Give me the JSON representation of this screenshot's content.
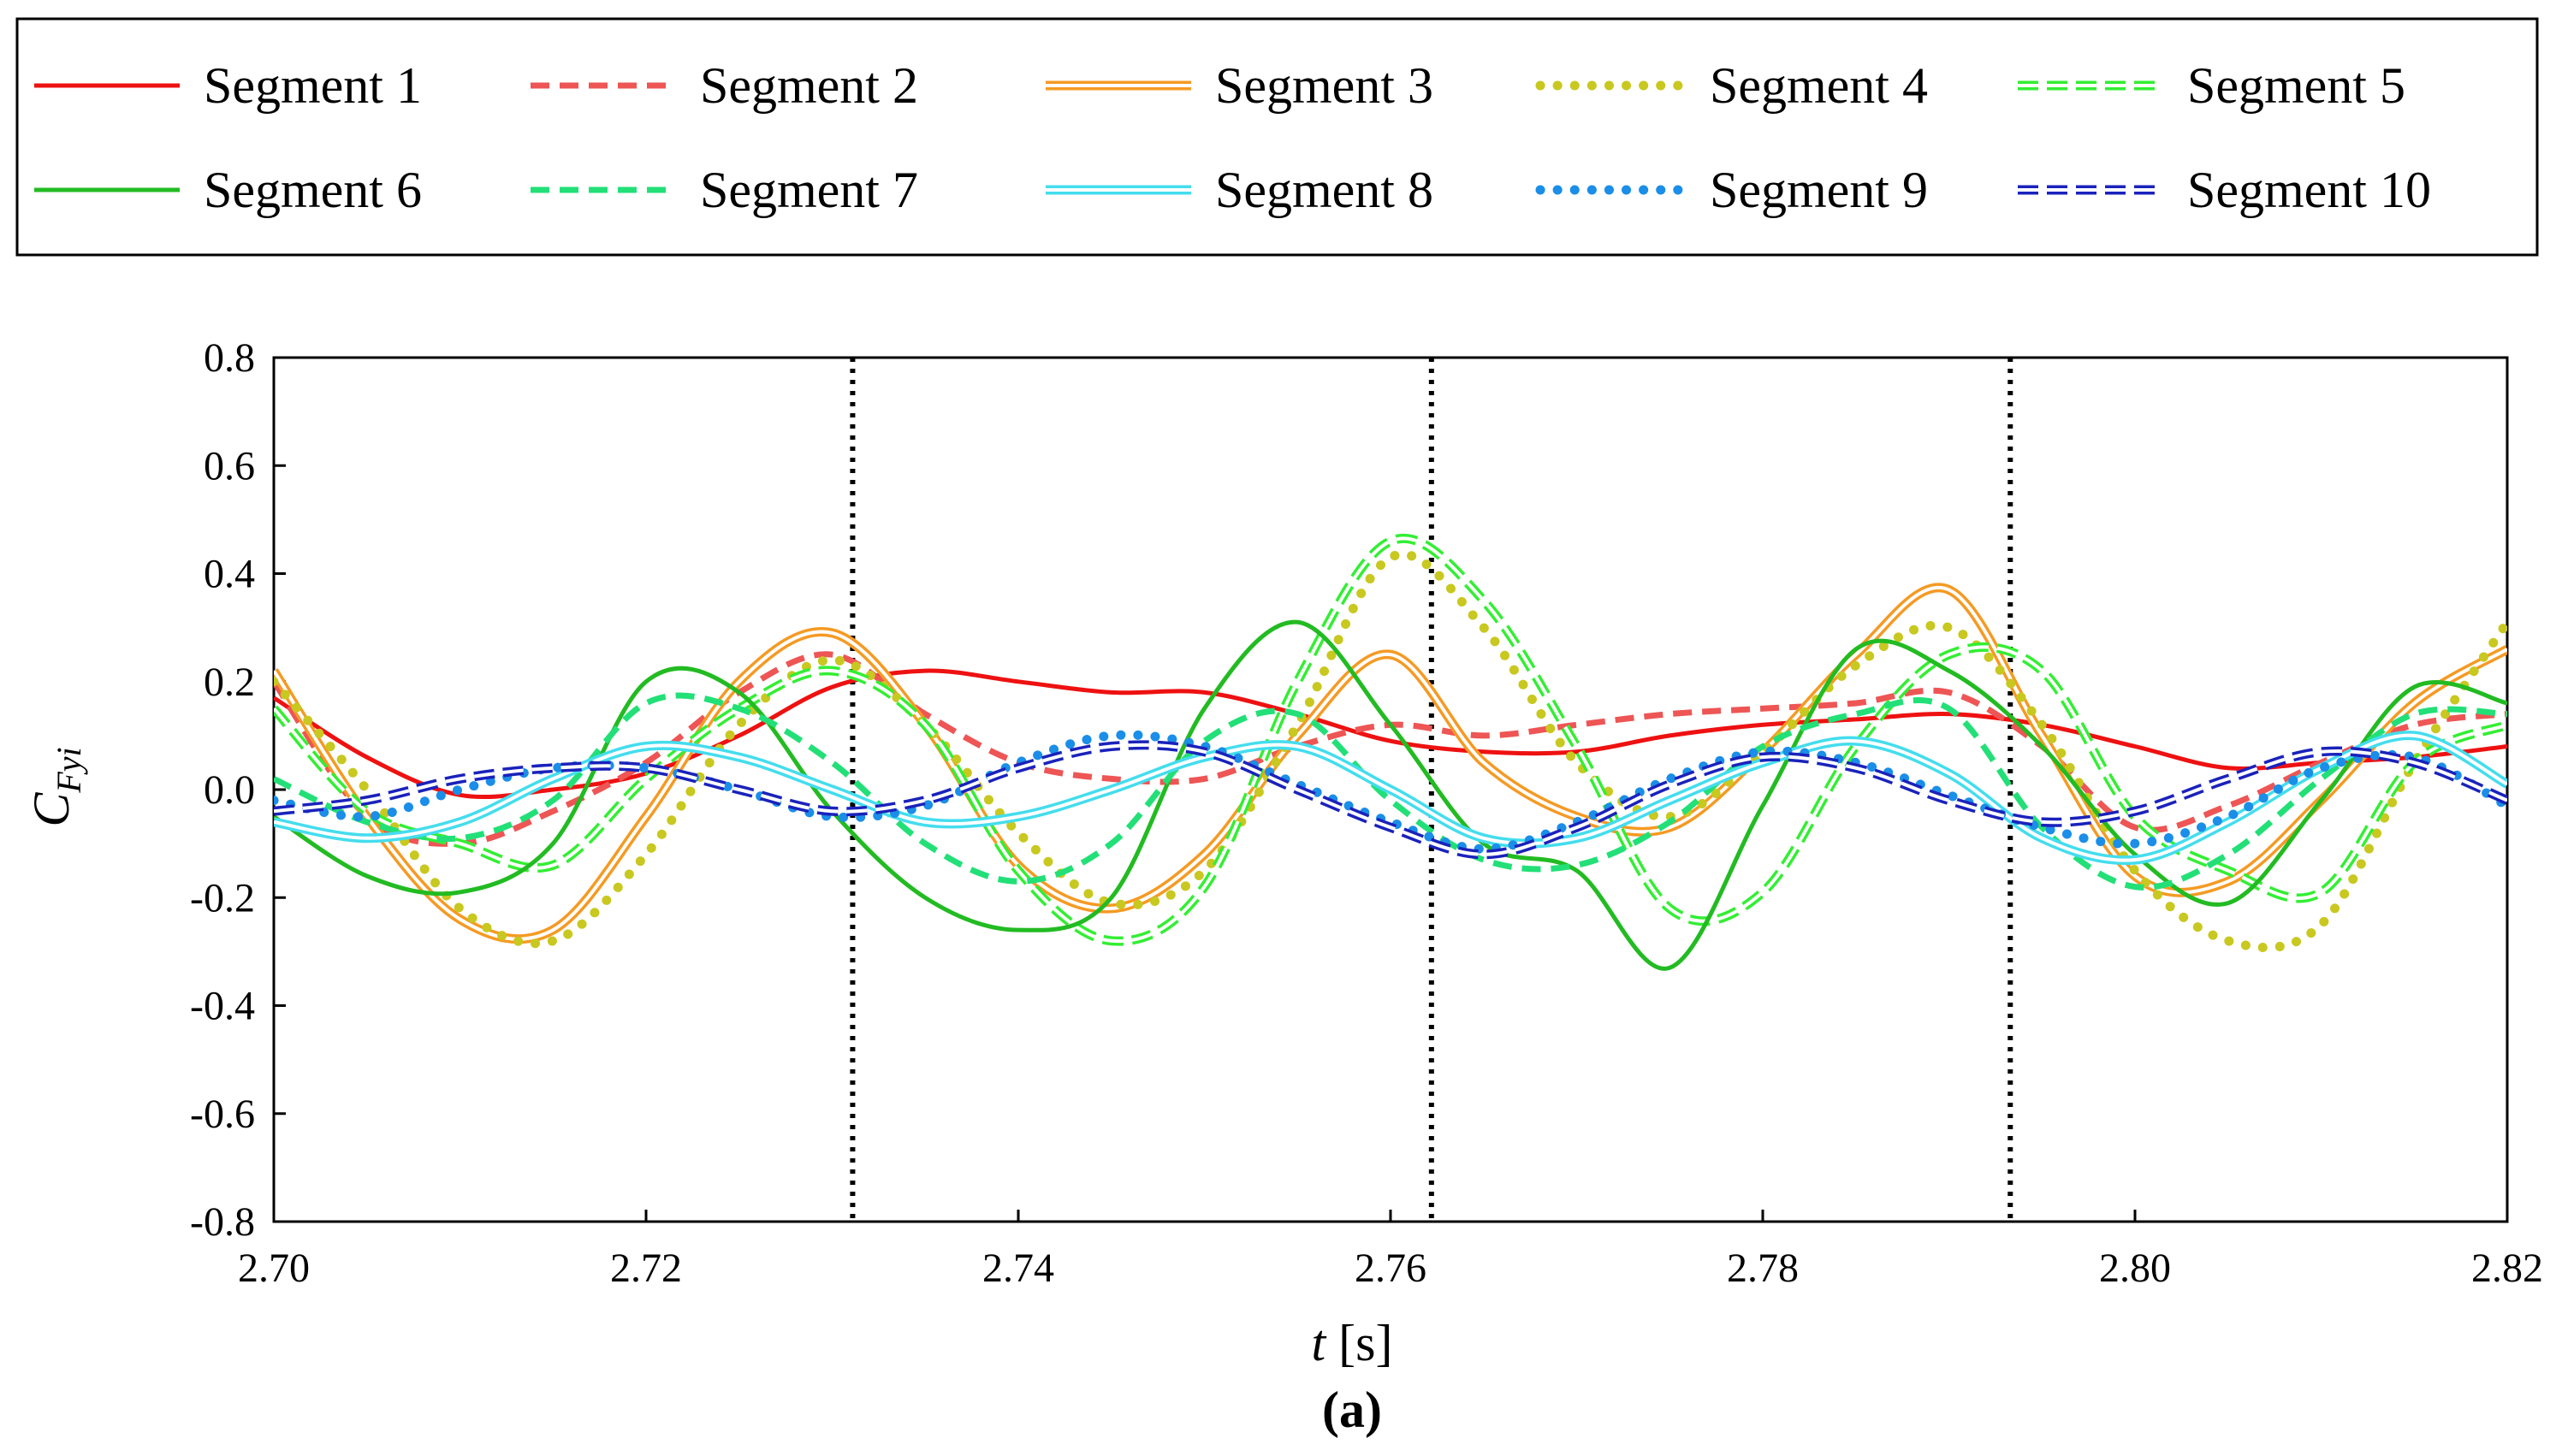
{
  "chart_data": {
    "type": "line",
    "title": "",
    "caption": "(a)",
    "xlabel_italic": "t",
    "xlabel_unit": " [s]",
    "ylabel_main": "C",
    "ylabel_sub": "Fyi",
    "xlim": [
      2.7,
      2.82
    ],
    "ylim": [
      -0.8,
      0.8
    ],
    "grid": false,
    "legend_position": "top",
    "x_ticks": [
      2.7,
      2.72,
      2.74,
      2.76,
      2.78,
      2.8,
      2.82
    ],
    "x_tick_labels": [
      "2.70",
      "2.72",
      "2.74",
      "2.76",
      "2.78",
      "2.80",
      "2.82"
    ],
    "y_ticks": [
      0.8,
      0.6,
      0.4,
      0.2,
      0.0,
      -0.2,
      -0.4,
      -0.6,
      -0.8
    ],
    "y_tick_labels": [
      "0.8",
      "0.6",
      "0.4",
      "0.2",
      "0.0",
      "-0.2",
      "-0.4",
      "-0.6",
      "-0.8"
    ],
    "vertical_reference_lines": [
      2.7311,
      2.7622,
      2.7933
    ],
    "x": [
      2.7,
      2.705,
      2.71,
      2.715,
      2.72,
      2.725,
      2.73,
      2.735,
      2.74,
      2.745,
      2.75,
      2.755,
      2.76,
      2.765,
      2.77,
      2.775,
      2.78,
      2.785,
      2.79,
      2.795,
      2.8,
      2.805,
      2.81,
      2.815,
      2.82
    ],
    "series": [
      {
        "name": "Segment 1",
        "color": "#ee1111",
        "style": "solid",
        "values": [
          0.17,
          0.06,
          -0.01,
          0.0,
          0.03,
          0.1,
          0.19,
          0.22,
          0.2,
          0.18,
          0.18,
          0.14,
          0.09,
          0.07,
          0.07,
          0.1,
          0.12,
          0.13,
          0.14,
          0.12,
          0.08,
          0.04,
          0.05,
          0.06,
          0.08
        ]
      },
      {
        "name": "Segment 2",
        "color": "#ee5555",
        "style": "dash",
        "values": [
          0.2,
          -0.05,
          -0.1,
          -0.04,
          0.05,
          0.18,
          0.25,
          0.14,
          0.05,
          0.02,
          0.02,
          0.08,
          0.12,
          0.1,
          0.12,
          0.14,
          0.15,
          0.16,
          0.18,
          0.08,
          -0.07,
          -0.03,
          0.05,
          0.12,
          0.14
        ]
      },
      {
        "name": "Segment 3",
        "color": "#f59a23",
        "style": "double",
        "values": [
          0.22,
          -0.05,
          -0.24,
          -0.26,
          -0.05,
          0.2,
          0.29,
          0.12,
          -0.14,
          -0.22,
          -0.12,
          0.1,
          0.25,
          0.05,
          -0.05,
          -0.07,
          0.07,
          0.25,
          0.37,
          0.1,
          -0.16,
          -0.17,
          -0.02,
          0.16,
          0.26
        ]
      },
      {
        "name": "Segment 4",
        "color": "#c8c820",
        "style": "dot",
        "values": [
          0.2,
          0.0,
          -0.22,
          -0.28,
          -0.12,
          0.12,
          0.24,
          0.12,
          -0.08,
          -0.21,
          -0.15,
          0.12,
          0.43,
          0.3,
          0.05,
          -0.05,
          0.07,
          0.23,
          0.3,
          0.12,
          -0.15,
          -0.28,
          -0.25,
          0.05,
          0.31
        ]
      },
      {
        "name": "Segment 5",
        "color": "#33ee33",
        "style": "hollow-dash",
        "values": [
          0.15,
          -0.04,
          -0.1,
          -0.14,
          0.02,
          0.15,
          0.22,
          0.12,
          -0.15,
          -0.28,
          -0.18,
          0.2,
          0.46,
          0.35,
          0.08,
          -0.22,
          -0.19,
          0.08,
          0.25,
          0.22,
          -0.05,
          -0.15,
          -0.19,
          0.05,
          0.12
        ]
      },
      {
        "name": "Segment 6",
        "color": "#22bb22",
        "style": "solid",
        "values": [
          -0.05,
          -0.16,
          -0.19,
          -0.1,
          0.2,
          0.18,
          -0.04,
          -0.2,
          -0.26,
          -0.2,
          0.15,
          0.31,
          0.12,
          -0.1,
          -0.15,
          -0.33,
          -0.03,
          0.26,
          0.22,
          0.08,
          -0.12,
          -0.21,
          -0.02,
          0.19,
          0.16
        ]
      },
      {
        "name": "Segment 7",
        "color": "#22e077",
        "style": "dash",
        "values": [
          0.02,
          -0.06,
          -0.09,
          -0.02,
          0.16,
          0.15,
          0.05,
          -0.1,
          -0.17,
          -0.1,
          0.09,
          0.14,
          -0.02,
          -0.13,
          -0.14,
          -0.06,
          0.08,
          0.14,
          0.15,
          -0.07,
          -0.18,
          -0.12,
          0.02,
          0.14,
          0.14
        ]
      },
      {
        "name": "Segment 8",
        "color": "#44ddee",
        "style": "double",
        "values": [
          -0.06,
          -0.09,
          -0.06,
          0.02,
          0.08,
          0.06,
          0.0,
          -0.06,
          -0.05,
          0.0,
          0.06,
          0.08,
          0.0,
          -0.09,
          -0.09,
          -0.02,
          0.05,
          0.09,
          0.03,
          -0.09,
          -0.13,
          -0.06,
          0.04,
          0.1,
          0.01
        ]
      },
      {
        "name": "Segment 9",
        "color": "#1a8ee8",
        "style": "dot",
        "values": [
          -0.02,
          -0.05,
          0.0,
          0.04,
          0.04,
          0.0,
          -0.05,
          -0.03,
          0.05,
          0.1,
          0.08,
          0.01,
          -0.06,
          -0.11,
          -0.06,
          0.02,
          0.07,
          0.05,
          -0.01,
          -0.07,
          -0.1,
          -0.05,
          0.04,
          0.06,
          -0.03
        ]
      },
      {
        "name": "Segment 10",
        "color": "#1a22bb",
        "style": "hollow-dash",
        "values": [
          -0.04,
          -0.02,
          0.02,
          0.04,
          0.04,
          0.0,
          -0.04,
          -0.02,
          0.04,
          0.08,
          0.07,
          0.0,
          -0.07,
          -0.12,
          -0.07,
          0.01,
          0.06,
          0.04,
          -0.02,
          -0.06,
          -0.04,
          0.02,
          0.07,
          0.05,
          -0.02
        ]
      }
    ]
  }
}
